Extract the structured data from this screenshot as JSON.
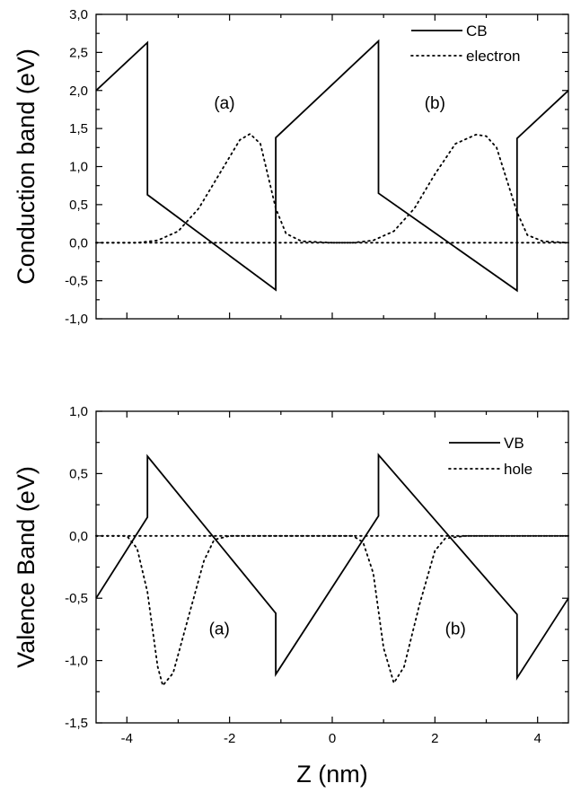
{
  "chart_data": [
    {
      "type": "line",
      "ylabel": "Conduction band (eV)",
      "xlabel": "",
      "xlim": [
        -4.6,
        4.6
      ],
      "ylim": [
        -1.0,
        3.0
      ],
      "y_ticks": [
        "-1,0",
        "-0,5",
        "0,0",
        "0,5",
        "1,0",
        "1,5",
        "2,0",
        "2,5",
        "3,0"
      ],
      "y_tick_values": [
        -1.0,
        -0.5,
        0.0,
        0.5,
        1.0,
        1.5,
        2.0,
        2.5,
        3.0
      ],
      "legend_position": "top-right",
      "annotations": [
        {
          "text": "(a)",
          "x": -2.1,
          "y": 1.76
        },
        {
          "text": "(b)",
          "x": 2.0,
          "y": 1.76
        }
      ],
      "series": [
        {
          "name": "CB",
          "style": "solid",
          "x": [
            -4.6,
            -3.6,
            -3.6,
            -1.1,
            -1.1,
            0.9,
            0.9,
            3.6,
            3.6,
            4.6
          ],
          "y": [
            2.0,
            2.63,
            0.63,
            -0.62,
            1.38,
            2.65,
            0.65,
            -0.63,
            1.37,
            2.0
          ]
        },
        {
          "name": "electron",
          "style": "dotted",
          "x": [
            -4.6,
            -3.8,
            -3.4,
            -3.0,
            -2.6,
            -2.2,
            -1.8,
            -1.6,
            -1.4,
            -1.1,
            -0.9,
            -0.6,
            0.0,
            0.4,
            0.8,
            1.2,
            1.6,
            2.0,
            2.4,
            2.8,
            3.0,
            3.2,
            3.6,
            3.8,
            4.1,
            4.6
          ],
          "y": [
            0.0,
            0.0,
            0.03,
            0.15,
            0.45,
            0.9,
            1.35,
            1.43,
            1.3,
            0.45,
            0.12,
            0.02,
            0.0,
            0.0,
            0.03,
            0.15,
            0.45,
            0.9,
            1.3,
            1.42,
            1.4,
            1.25,
            0.4,
            0.1,
            0.02,
            0.0
          ]
        },
        {
          "name": "",
          "style": "dotted",
          "x": [
            -4.6,
            4.6
          ],
          "y": [
            0.0,
            0.0
          ]
        }
      ]
    },
    {
      "type": "line",
      "ylabel": "Valence Band (eV)",
      "xlabel": "Z (nm)",
      "xlim": [
        -4.6,
        4.6
      ],
      "ylim": [
        -1.5,
        1.0
      ],
      "x_ticks": [
        "-4",
        "-2",
        "0",
        "2",
        "4"
      ],
      "x_tick_values": [
        -4,
        -2,
        0,
        2,
        4
      ],
      "y_ticks": [
        "-1,5",
        "-1,0",
        "-0,5",
        "0,0",
        "0,5",
        "1,0"
      ],
      "y_tick_values": [
        -1.5,
        -1.0,
        -0.5,
        0.0,
        0.5,
        1.0
      ],
      "legend_position": "top-right",
      "annotations": [
        {
          "text": "(a)",
          "x": -2.2,
          "y": -0.79
        },
        {
          "text": "(b)",
          "x": 2.4,
          "y": -0.79
        }
      ],
      "series": [
        {
          "name": "VB",
          "style": "solid",
          "x": [
            -4.6,
            -3.6,
            -3.6,
            -1.1,
            -1.1,
            0.9,
            0.9,
            3.6,
            3.6,
            4.6
          ],
          "y": [
            -0.5,
            0.15,
            0.64,
            -0.62,
            -1.11,
            0.16,
            0.65,
            -0.63,
            -1.14,
            -0.5
          ]
        },
        {
          "name": "hole",
          "style": "dotted",
          "x": [
            -4.6,
            -4.0,
            -3.8,
            -3.6,
            -3.4,
            -3.3,
            -3.1,
            -2.8,
            -2.5,
            -2.3,
            -2.0,
            -1.0,
            0.4,
            0.6,
            0.8,
            1.0,
            1.2,
            1.4,
            1.7,
            2.0,
            2.2,
            2.6,
            4.6
          ],
          "y": [
            0.0,
            0.0,
            -0.1,
            -0.45,
            -1.05,
            -1.2,
            -1.1,
            -0.65,
            -0.2,
            -0.03,
            0.0,
            0.0,
            0.0,
            -0.05,
            -0.3,
            -0.9,
            -1.18,
            -1.05,
            -0.55,
            -0.12,
            -0.02,
            0.0,
            0.0
          ]
        },
        {
          "name": "",
          "style": "dotted",
          "x": [
            -4.6,
            4.6
          ],
          "y": [
            0.0,
            0.0
          ]
        }
      ]
    }
  ]
}
